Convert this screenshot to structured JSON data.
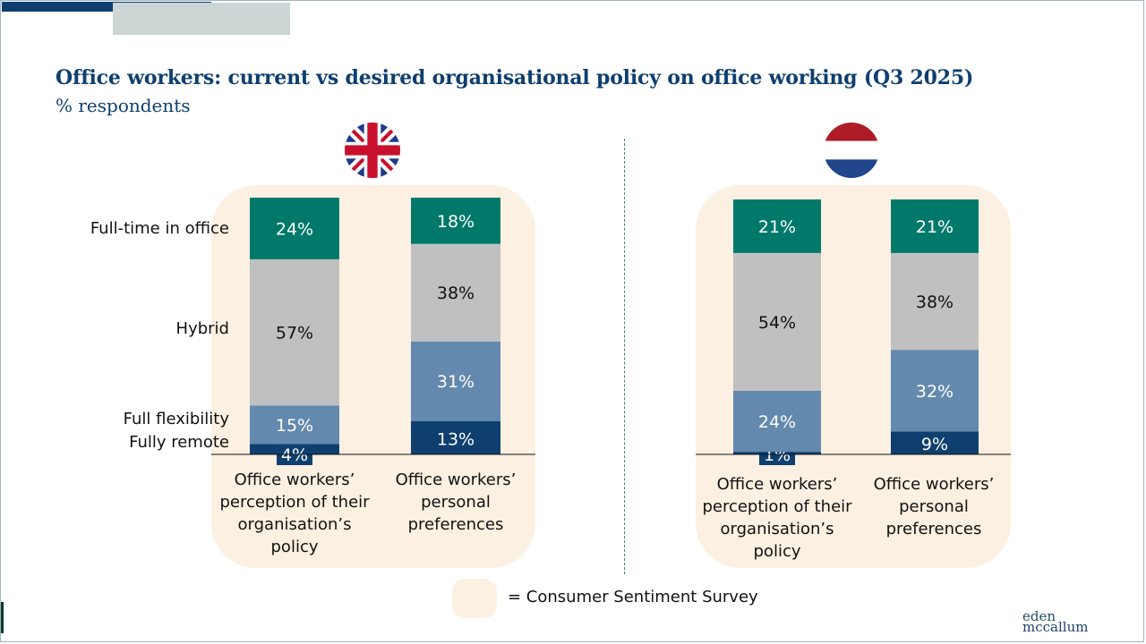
{
  "header": {
    "title": "Office workers: current vs desired organisational policy on office working (Q3 2025)",
    "subtitle": "% respondents"
  },
  "colors": {
    "full_time_in_office": "#00796b",
    "hybrid": "#c0c0c0",
    "full_flexibility": "#6489ae",
    "fully_remote": "#0e3f6e",
    "panel": "#fbf0e1",
    "title": "#0e3f6e"
  },
  "legend": {
    "swatch_meaning": "= Consumer Sentiment Survey"
  },
  "logo": {
    "line1": "eden",
    "line2": "mccallum"
  },
  "chart_data": {
    "type": "bar",
    "stacked": true,
    "title": "Office workers: current vs desired organisational policy on office working (Q3 2025)",
    "subtitle": "% respondents",
    "unit": "%",
    "series_order_bottom_to_top": [
      "Fully remote",
      "Full flexibility",
      "Hybrid",
      "Full-time in office"
    ],
    "category_labels": [
      "Full-time in office",
      "Hybrid",
      "Full flexibility",
      "Fully remote"
    ],
    "groups": [
      {
        "country": "United Kingdom",
        "flag_icon": "uk-flag-icon",
        "categories": [
          "Office workers’ perception of their organisation’s policy",
          "Office workers’ personal preferences"
        ],
        "categories_lines": [
          [
            "Office workers’",
            "perception of their",
            "organisation’s",
            "policy"
          ],
          [
            "Office workers’",
            "personal",
            "preferences"
          ]
        ],
        "series": [
          {
            "name": "Fully remote",
            "values": [
              4,
              13
            ]
          },
          {
            "name": "Full flexibility",
            "values": [
              15,
              31
            ]
          },
          {
            "name": "Hybrid",
            "values": [
              57,
              38
            ]
          },
          {
            "name": "Full-time in office",
            "values": [
              24,
              18
            ]
          }
        ]
      },
      {
        "country": "Netherlands",
        "flag_icon": "nl-flag-icon",
        "categories": [
          "Office workers’ perception of their organisation’s policy",
          "Office workers’ personal preferences"
        ],
        "categories_lines": [
          [
            "Office workers’",
            "perception of their",
            "organisation’s",
            "policy"
          ],
          [
            "Office workers’",
            "personal",
            "preferences"
          ]
        ],
        "series": [
          {
            "name": "Fully remote",
            "values": [
              1,
              9
            ]
          },
          {
            "name": "Full flexibility",
            "values": [
              24,
              32
            ]
          },
          {
            "name": "Hybrid",
            "values": [
              54,
              38
            ]
          },
          {
            "name": "Full-time in office",
            "values": [
              21,
              21
            ]
          }
        ]
      }
    ],
    "ylim": [
      0,
      100
    ],
    "grid": false
  }
}
